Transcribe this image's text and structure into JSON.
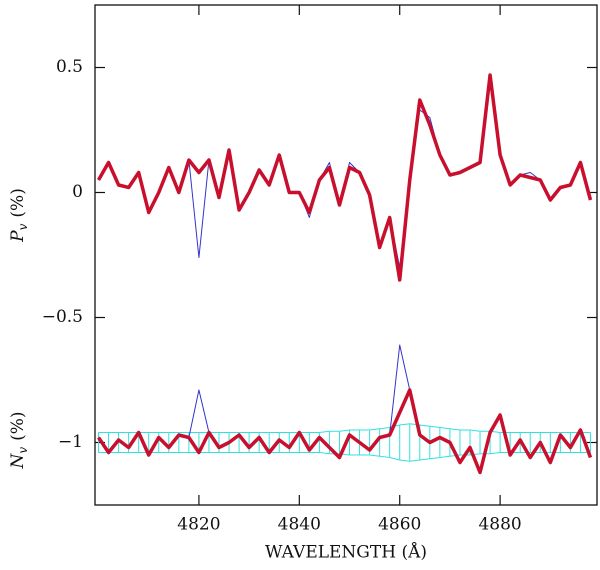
{
  "chart_data": {
    "type": "line",
    "xlabel": "WAVELENGTH (Å)",
    "ylabel_top": [
      "P",
      "v",
      "(%)"
    ],
    "ylabel_bottom": [
      "N",
      "v",
      "(%)"
    ],
    "xlim": [
      4799.3,
      4899.3
    ],
    "ylim": [
      -1.25,
      0.75
    ],
    "xticks": [
      4820,
      4840,
      4860,
      4880
    ],
    "yticks": [
      0.5,
      0,
      {
        "value": -0.5,
        "label": "−0.5"
      },
      {
        "value": -1,
        "label": "−1"
      }
    ],
    "x": [
      4800,
      4802,
      4804,
      4806,
      4808,
      4810,
      4812,
      4814,
      4816,
      4818,
      4820,
      4822,
      4824,
      4826,
      4828,
      4830,
      4832,
      4834,
      4836,
      4838,
      4840,
      4842,
      4844,
      4846,
      4848,
      4850,
      4852,
      4854,
      4856,
      4858,
      4860,
      4862,
      4864,
      4866,
      4868,
      4870,
      4872,
      4874,
      4876,
      4878,
      4880,
      4882,
      4884,
      4886,
      4888,
      4890,
      4892,
      4894,
      4896,
      4898
    ],
    "band": {
      "color": "#33e0e0",
      "center": -1,
      "errors": [
        0.04,
        0.04,
        0.04,
        0.04,
        0.04,
        0.04,
        0.04,
        0.04,
        0.04,
        0.04,
        0.04,
        0.04,
        0.04,
        0.04,
        0.04,
        0.04,
        0.04,
        0.04,
        0.04,
        0.04,
        0.04,
        0.04,
        0.04,
        0.045,
        0.045,
        0.05,
        0.05,
        0.05,
        0.055,
        0.06,
        0.07,
        0.075,
        0.07,
        0.065,
        0.06,
        0.055,
        0.05,
        0.05,
        0.045,
        0.045,
        0.04,
        0.04,
        0.04,
        0.04,
        0.04,
        0.04,
        0.04,
        0.04,
        0.04,
        0.04
      ]
    },
    "series": [
      {
        "color": "#3333cc",
        "width": 1,
        "values": [
          0.05,
          0.12,
          0.03,
          0.02,
          0.08,
          -0.08,
          0.0,
          0.1,
          0.0,
          0.13,
          -0.26,
          0.13,
          -0.02,
          0.17,
          -0.07,
          0.0,
          0.09,
          0.03,
          0.15,
          0.0,
          0.0,
          -0.1,
          0.05,
          0.12,
          -0.05,
          0.12,
          0.08,
          -0.01,
          -0.22,
          -0.1,
          -0.3,
          0.05,
          0.33,
          0.3,
          0.15,
          0.07,
          0.08,
          0.1,
          0.12,
          0.47,
          0.15,
          0.03,
          0.07,
          0.08,
          0.05,
          -0.03,
          0.02,
          0.03,
          0.12,
          -0.03
        ]
      },
      {
        "color": "#c8102e",
        "width": 3.5,
        "values": [
          0.05,
          0.12,
          0.03,
          0.02,
          0.08,
          -0.08,
          0.0,
          0.1,
          0.0,
          0.13,
          0.08,
          0.13,
          -0.02,
          0.17,
          -0.07,
          0.0,
          0.09,
          0.03,
          0.15,
          0.0,
          0.0,
          -0.08,
          0.05,
          0.1,
          -0.05,
          0.1,
          0.08,
          -0.01,
          -0.22,
          -0.1,
          -0.35,
          0.05,
          0.37,
          0.27,
          0.15,
          0.07,
          0.08,
          0.1,
          0.12,
          0.47,
          0.15,
          0.03,
          0.07,
          0.06,
          0.05,
          -0.03,
          0.02,
          0.03,
          0.12,
          -0.03
        ]
      },
      {
        "color": "#3333cc",
        "width": 1,
        "values": [
          -0.98,
          -1.04,
          -0.99,
          -1.02,
          -0.96,
          -1.05,
          -0.98,
          -1.02,
          -0.97,
          -0.98,
          -0.79,
          -0.96,
          -1.02,
          -1.0,
          -0.97,
          -1.02,
          -0.98,
          -1.04,
          -0.99,
          -1.02,
          -0.96,
          -1.03,
          -0.98,
          -1.02,
          -1.06,
          -0.97,
          -1.0,
          -1.03,
          -0.98,
          -0.97,
          -0.61,
          -0.79,
          -0.97,
          -1.0,
          -0.98,
          -1.0,
          -1.08,
          -1.02,
          -1.12,
          -0.96,
          -0.89,
          -1.05,
          -0.99,
          -1.06,
          -1.0,
          -1.08,
          -0.97,
          -1.02,
          -0.95,
          -1.06
        ]
      },
      {
        "color": "#c8102e",
        "width": 3.5,
        "values": [
          -0.98,
          -1.04,
          -0.99,
          -1.02,
          -0.96,
          -1.05,
          -0.98,
          -1.02,
          -0.97,
          -0.98,
          -1.04,
          -0.96,
          -1.02,
          -1.0,
          -0.97,
          -1.02,
          -0.98,
          -1.04,
          -0.99,
          -1.02,
          -0.96,
          -1.03,
          -0.98,
          -1.02,
          -1.06,
          -0.97,
          -1.0,
          -1.03,
          -0.98,
          -0.97,
          -0.88,
          -0.79,
          -0.97,
          -1.0,
          -0.98,
          -1.0,
          -1.08,
          -1.02,
          -1.12,
          -0.96,
          -0.89,
          -1.05,
          -0.99,
          -1.06,
          -1.0,
          -1.08,
          -0.97,
          -1.02,
          -0.95,
          -1.06
        ]
      }
    ]
  }
}
